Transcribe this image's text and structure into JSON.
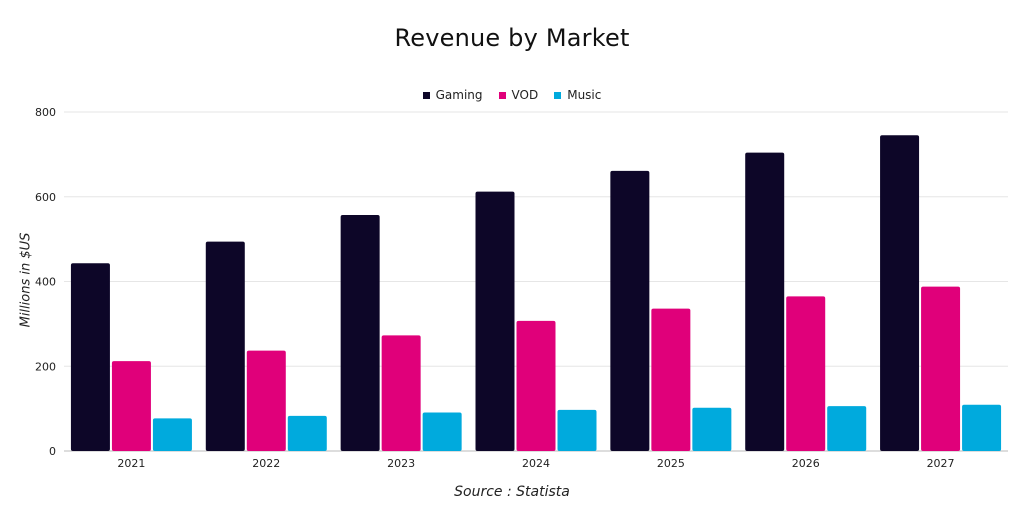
{
  "chart_data": {
    "type": "bar",
    "title": "Revenue by Market",
    "ylabel": "Millions in $US",
    "xlabel": "",
    "source": "Source : Statista",
    "categories": [
      "2021",
      "2022",
      "2023",
      "2024",
      "2025",
      "2026",
      "2027"
    ],
    "ylim": [
      0,
      800
    ],
    "yticks": [
      0,
      200,
      400,
      600,
      800
    ],
    "grid": true,
    "legend_position": "top-center",
    "series": [
      {
        "name": "Gaming",
        "color": "#0d0628",
        "values": [
          443,
          494,
          557,
          612,
          661,
          704,
          745
        ]
      },
      {
        "name": "VOD",
        "color": "#e0007a",
        "values": [
          212,
          237,
          273,
          307,
          336,
          365,
          388
        ]
      },
      {
        "name": "Music",
        "color": "#00aadd",
        "values": [
          77,
          83,
          91,
          97,
          102,
          106,
          109
        ]
      }
    ]
  }
}
